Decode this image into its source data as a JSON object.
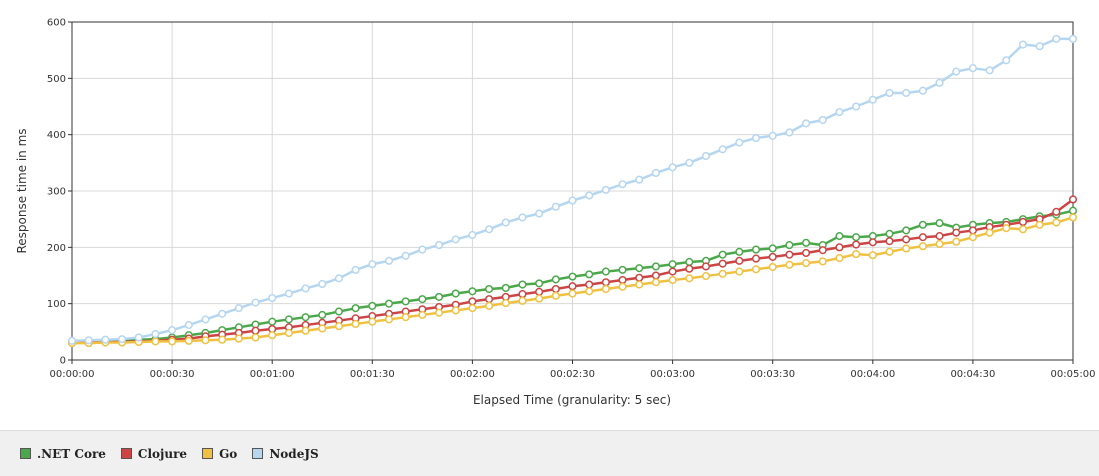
{
  "chart_data": {
    "type": "line",
    "xlabel": "Elapsed Time (granularity: 5 sec)",
    "ylabel": "Response time in ms",
    "ylim": [
      0,
      600
    ],
    "yticks": [
      "0",
      "100",
      "200",
      "300",
      "400",
      "500",
      "600"
    ],
    "xlim_seconds": [
      0,
      300
    ],
    "xticks": [
      "00:00:00",
      "00:00:30",
      "00:01:00",
      "00:01:30",
      "00:02:00",
      "00:02:30",
      "00:03:00",
      "00:03:30",
      "00:04:00",
      "00:04:30",
      "00:05:00"
    ],
    "x_seconds": [
      0,
      5,
      10,
      15,
      20,
      25,
      30,
      35,
      40,
      45,
      50,
      55,
      60,
      65,
      70,
      75,
      80,
      85,
      90,
      95,
      100,
      105,
      110,
      115,
      120,
      125,
      130,
      135,
      140,
      145,
      150,
      155,
      160,
      165,
      170,
      175,
      180,
      185,
      190,
      195,
      200,
      205,
      210,
      215,
      220,
      225,
      230,
      235,
      240,
      245,
      250,
      255,
      260,
      265,
      270,
      275,
      280,
      285,
      290,
      295,
      300
    ],
    "grid": true,
    "legend_position": "bottom-left",
    "series": [
      {
        "name": ".NET Core",
        "color": "#4aa84a",
        "values": [
          33,
          33,
          34,
          34,
          36,
          37,
          40,
          44,
          48,
          53,
          58,
          63,
          68,
          72,
          76,
          80,
          86,
          92,
          96,
          100,
          104,
          108,
          112,
          118,
          122,
          126,
          128,
          134,
          136,
          143,
          148,
          152,
          157,
          160,
          163,
          166,
          170,
          174,
          176,
          187,
          192,
          196,
          198,
          204,
          208,
          204,
          220,
          218,
          220,
          224,
          230,
          240,
          243,
          235,
          240,
          243,
          245,
          250,
          255,
          258,
          265
        ]
      },
      {
        "name": "Clojure",
        "color": "#cc4444",
        "values": [
          32,
          32,
          32,
          32,
          33,
          34,
          36,
          38,
          42,
          45,
          48,
          52,
          55,
          58,
          62,
          66,
          70,
          74,
          78,
          82,
          86,
          90,
          94,
          98,
          104,
          108,
          112,
          117,
          121,
          126,
          131,
          134,
          138,
          142,
          146,
          150,
          157,
          162,
          166,
          171,
          176,
          180,
          183,
          187,
          190,
          195,
          200,
          205,
          209,
          211,
          214,
          218,
          220,
          226,
          230,
          236,
          240,
          245,
          250,
          263,
          285
        ]
      },
      {
        "name": "Go",
        "color": "#f0c040",
        "values": [
          30,
          30,
          31,
          31,
          32,
          33,
          33,
          34,
          35,
          36,
          38,
          40,
          44,
          48,
          52,
          56,
          60,
          64,
          68,
          72,
          76,
          80,
          84,
          88,
          92,
          96,
          101,
          105,
          109,
          114,
          118,
          122,
          126,
          130,
          134,
          138,
          142,
          145,
          149,
          153,
          157,
          161,
          165,
          169,
          172,
          175,
          181,
          188,
          186,
          192,
          198,
          202,
          206,
          210,
          218,
          226,
          234,
          232,
          240,
          244,
          253
        ]
      },
      {
        "name": "NodeJS",
        "color": "#b5d6f0",
        "values": [
          34,
          35,
          36,
          37,
          40,
          46,
          53,
          62,
          72,
          82,
          92,
          102,
          110,
          118,
          127,
          135,
          145,
          160,
          170,
          176,
          185,
          196,
          204,
          214,
          222,
          232,
          244,
          253,
          260,
          272,
          283,
          292,
          302,
          312,
          320,
          332,
          342,
          350,
          362,
          374,
          386,
          394,
          398,
          404,
          420,
          426,
          440,
          450,
          462,
          474,
          474,
          478,
          492,
          512,
          518,
          514,
          532,
          560,
          557,
          570,
          570
        ]
      }
    ]
  }
}
